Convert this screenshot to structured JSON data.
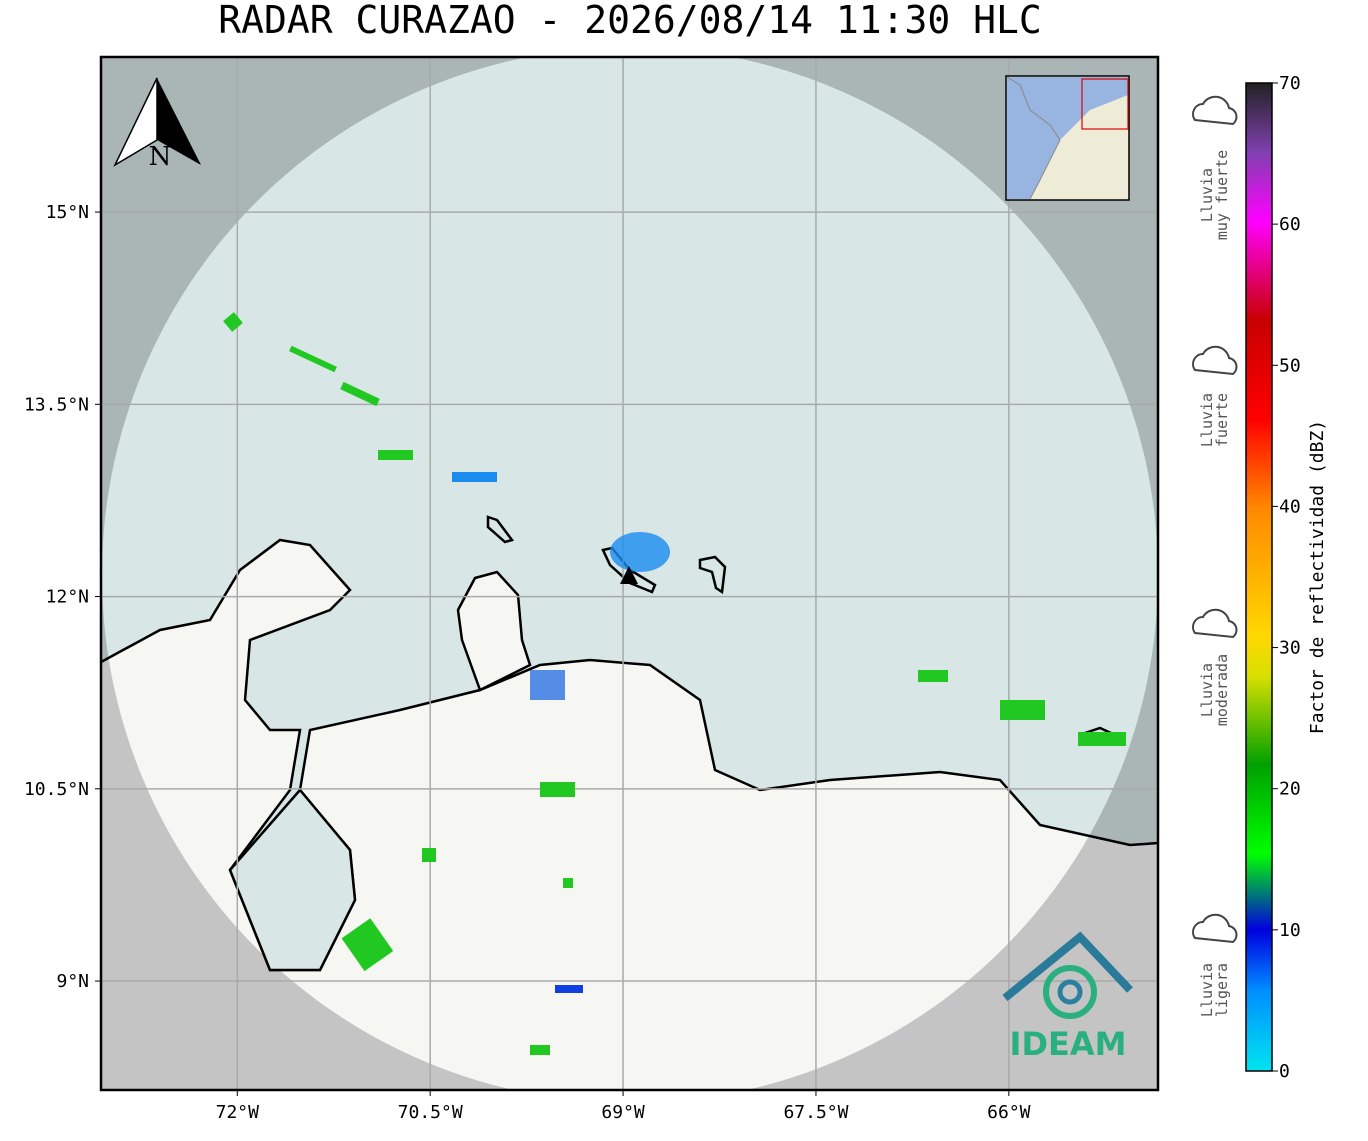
{
  "title": "RADAR CURAZAO - 2026/08/14 11:30 HLC",
  "map": {
    "lonlim": [
      -73.06,
      -64.84
    ],
    "latlim": [
      8.15,
      16.21
    ],
    "xticks": [
      {
        "value": -72,
        "label": "72°W"
      },
      {
        "value": -70.5,
        "label": "70.5°W"
      },
      {
        "value": -69,
        "label": "69°W"
      },
      {
        "value": -67.5,
        "label": "67.5°W"
      },
      {
        "value": -66,
        "label": "66°W"
      }
    ],
    "yticks": [
      {
        "value": 9,
        "label": "9°N"
      },
      {
        "value": 10.5,
        "label": "10.5°N"
      },
      {
        "value": 12,
        "label": "12°N"
      },
      {
        "value": 13.5,
        "label": "13.5°N"
      },
      {
        "value": 15,
        "label": "15°N"
      }
    ],
    "north_label": "N",
    "logo": "IDEAM"
  },
  "colorbar": {
    "label": "Factor de reflectividad (dBZ)",
    "lim": [
      0,
      70
    ],
    "ticks": [
      0,
      10,
      20,
      30,
      40,
      50,
      60,
      70
    ]
  },
  "legend": [
    [
      "Lluvia",
      "muy fuerte"
    ],
    [
      "Lluvia",
      "fuerte"
    ],
    [
      "Lluvia",
      "moderada"
    ],
    [
      "Lluvia",
      "ligera"
    ]
  ]
}
